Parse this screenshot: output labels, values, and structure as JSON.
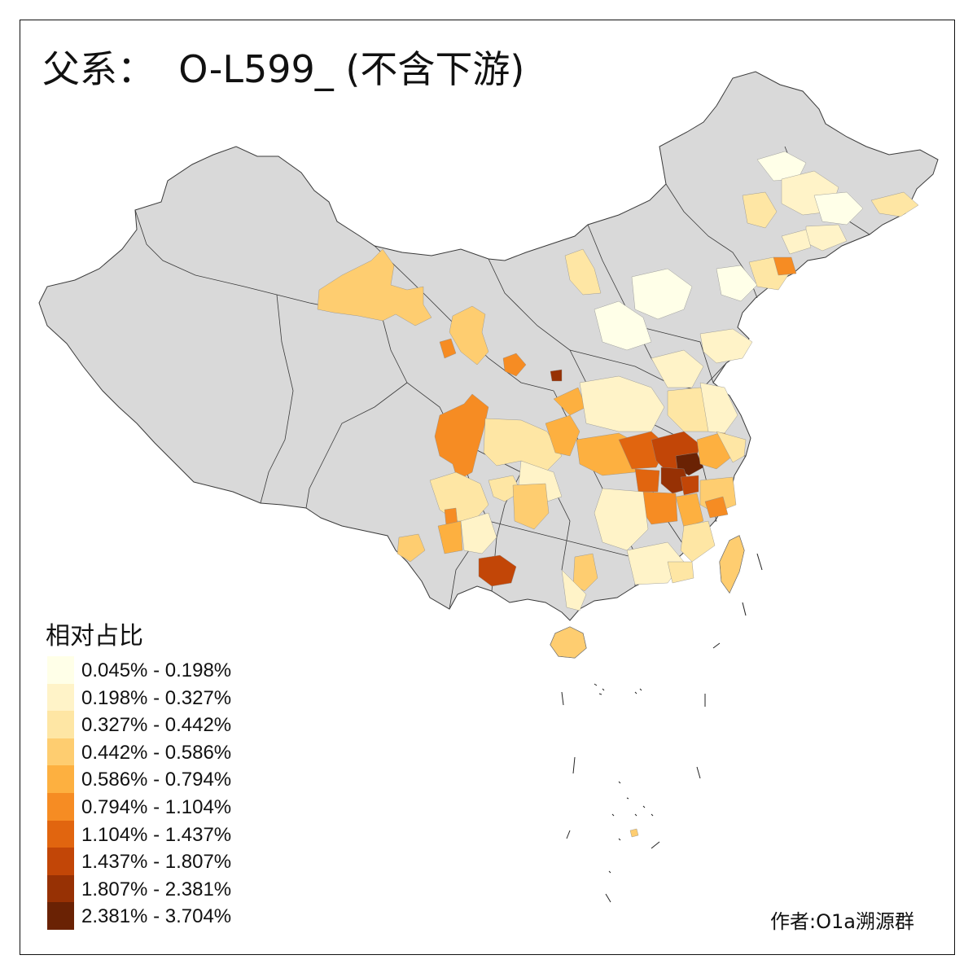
{
  "title": "父系：  O-L599_ (不含下游)",
  "legend": {
    "title": "相对占比",
    "no_data_color": "#d9d9d9",
    "classes": [
      {
        "label": "0.045% - 0.198%",
        "color": "#ffffe8"
      },
      {
        "label": "0.198% - 0.327%",
        "color": "#fff3c8"
      },
      {
        "label": "0.327% - 0.442%",
        "color": "#fee6a4"
      },
      {
        "label": "0.442% - 0.586%",
        "color": "#fecd70"
      },
      {
        "label": "0.586% - 0.794%",
        "color": "#fdb040"
      },
      {
        "label": "0.794% - 1.104%",
        "color": "#f68c23"
      },
      {
        "label": "1.104% - 1.437%",
        "color": "#e1650f"
      },
      {
        "label": "1.437% - 1.807%",
        "color": "#c24607"
      },
      {
        "label": "1.807% - 2.381%",
        "color": "#973104"
      },
      {
        "label": "2.381% - 3.704%",
        "color": "#6a2204"
      }
    ]
  },
  "credit": "作者:O1a溯源群"
}
